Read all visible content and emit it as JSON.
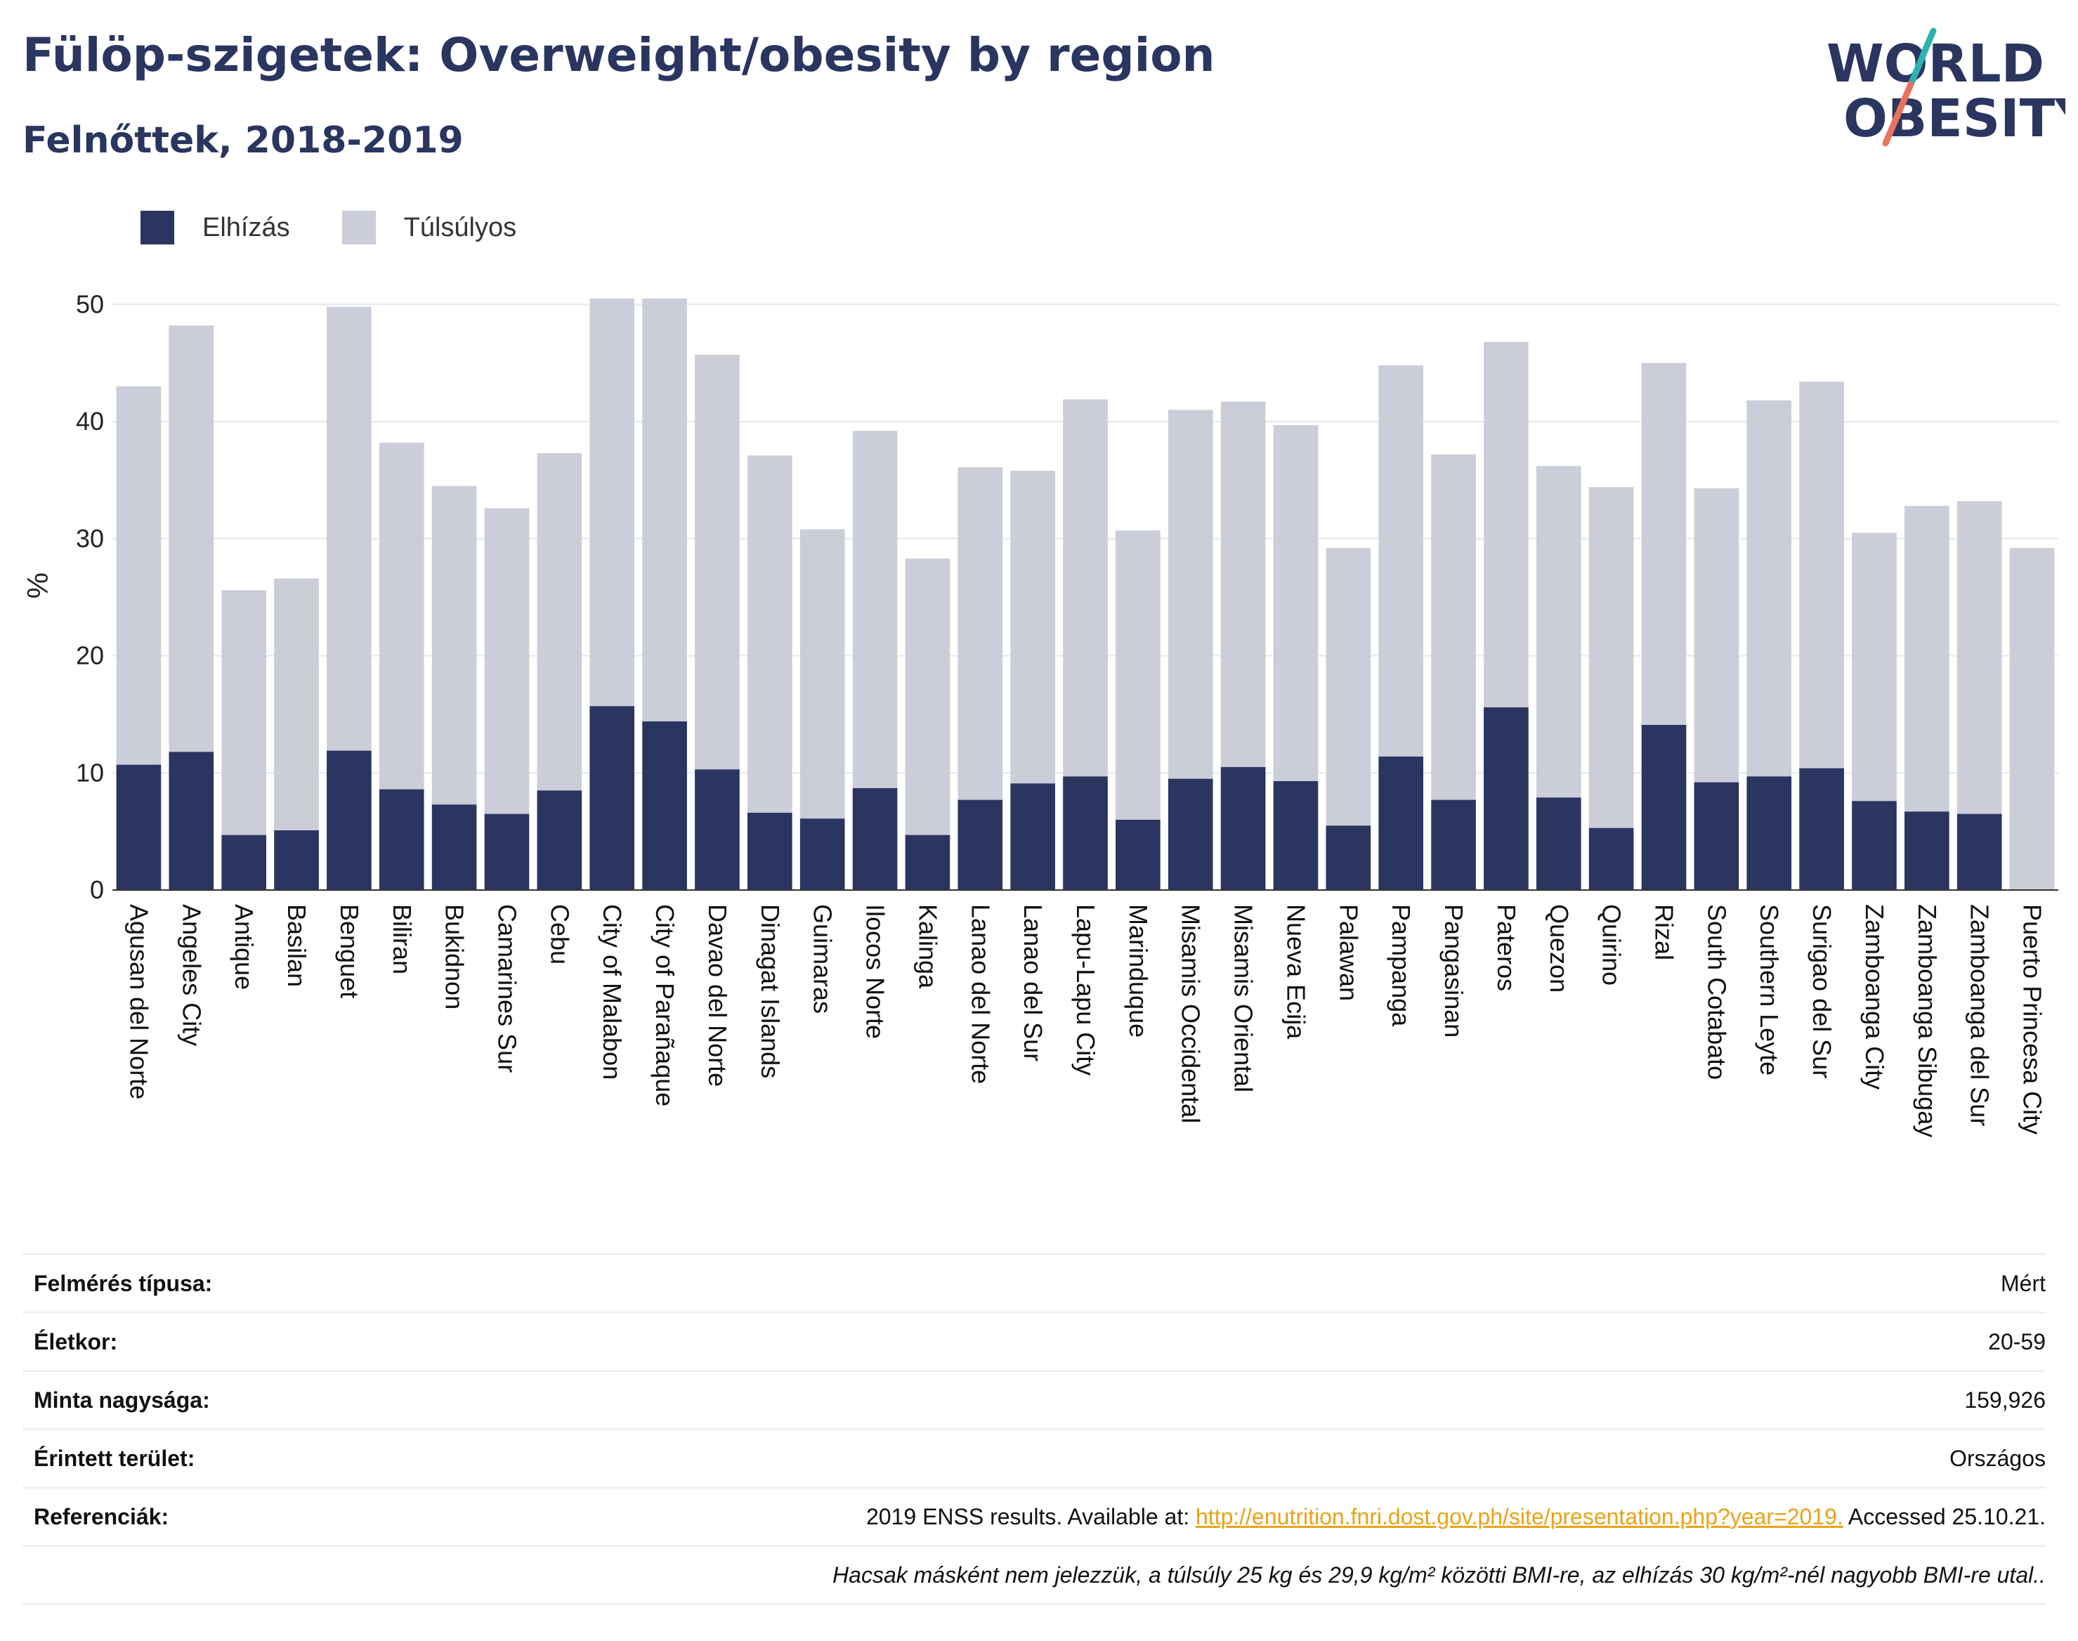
{
  "header": {
    "title": "Fülöp-szigetek: Overweight/obesity by region",
    "subtitle": "Felnőttek, 2018-2019"
  },
  "logo": {
    "line1": "WORLD",
    "line2": "OBESITY"
  },
  "colors": {
    "obesity": "#2a3560",
    "overweight": "#cbcdd9",
    "text": "#2a3560",
    "link": "#e8a317",
    "logo_teal": "#2bb3b0",
    "logo_coral": "#e8735f"
  },
  "chart_data": {
    "type": "bar",
    "stacked": true,
    "ylabel": "%",
    "ylim": [
      0,
      52
    ],
    "yticks": [
      0,
      10,
      20,
      30,
      40,
      50
    ],
    "grid": true,
    "legend_position": "top-left",
    "categories": [
      "Agusan del Norte",
      "Angeles City",
      "Antique",
      "Basilan",
      "Benguet",
      "Biliran",
      "Bukidnon",
      "Camarines Sur",
      "Cebu",
      "City of Malabon",
      "City of Parañaque",
      "Davao del Norte",
      "Dinagat Islands",
      "Guimaras",
      "Ilocos Norte",
      "Kalinga",
      "Lanao del Norte",
      "Lanao del Sur",
      "Lapu-Lapu City",
      "Marinduque",
      "Misamis Occidental",
      "Misamis Oriental",
      "Nueva Ecija",
      "Palawan",
      "Pampanga",
      "Pangasinan",
      "Pateros",
      "Quezon",
      "Quirino",
      "Rizal",
      "South Cotabato",
      "Southern Leyte",
      "Surigao del Sur",
      "Zamboanga City",
      "Zamboanga Sibugay",
      "Zamboanga del Sur",
      "Puerto Princesa City"
    ],
    "series": [
      {
        "name": "Elhízás",
        "values": [
          10.7,
          11.8,
          4.7,
          5.1,
          11.9,
          8.6,
          7.3,
          6.5,
          8.5,
          15.7,
          14.4,
          10.3,
          6.6,
          6.1,
          8.7,
          4.7,
          7.7,
          9.1,
          9.7,
          6.0,
          9.5,
          10.5,
          9.3,
          5.5,
          11.4,
          7.7,
          15.6,
          7.9,
          5.3,
          14.1,
          9.2,
          9.7,
          10.4,
          7.6,
          6.7,
          6.5,
          0
        ]
      },
      {
        "name": "Túlsúlyos",
        "values": [
          32.3,
          36.4,
          20.9,
          21.5,
          37.9,
          29.6,
          27.2,
          26.1,
          28.8,
          34.8,
          36.1,
          35.4,
          30.5,
          24.7,
          30.5,
          23.6,
          28.4,
          26.7,
          32.2,
          24.7,
          31.5,
          31.2,
          30.4,
          23.7,
          33.4,
          29.5,
          31.2,
          28.3,
          29.1,
          30.9,
          25.1,
          32.1,
          33.0,
          22.9,
          26.1,
          26.7,
          29.2
        ]
      }
    ]
  },
  "info": [
    {
      "label": "Felmérés típusa:",
      "value": "Mért"
    },
    {
      "label": "Életkor:",
      "value": "20-59"
    },
    {
      "label": "Minta nagysága:",
      "value": "159,926"
    },
    {
      "label": "Érintett terület:",
      "value": "Országos"
    }
  ],
  "reference": {
    "label": "Referenciák:",
    "prefix": "2019 ENSS results. Available at: ",
    "link": "http://enutrition.fnri.dost.gov.ph/site/presentation.php?year=2019.",
    "suffix": " Accessed 25.10.21."
  },
  "note": "Hacsak másként nem jelezzük, a túlsúly 25 kg és 29,9 kg/m² közötti BMI-re, az elhízás 30 kg/m²-nél nagyobb BMI-re utal.."
}
